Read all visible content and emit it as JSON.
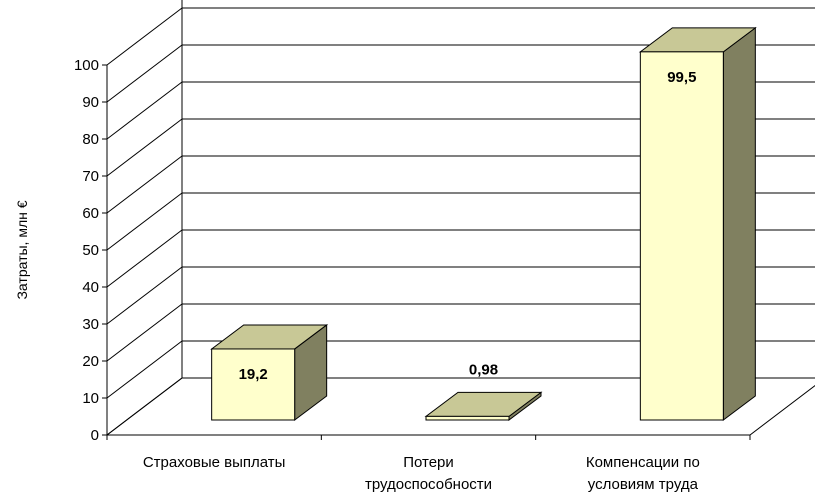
{
  "chart_data": {
    "type": "bar",
    "style": "3d-column",
    "categories": [
      [
        "Страховые выплаты"
      ],
      [
        "Потери",
        "трудоспособности"
      ],
      [
        "Компенсации по",
        "условиям труда"
      ]
    ],
    "values": [
      19.2,
      0.98,
      99.5
    ],
    "data_labels": [
      "19,2",
      "0,98",
      "99,5"
    ],
    "ylabel": "Затраты, млн €",
    "xlabel": "",
    "ylim": [
      0,
      100
    ],
    "yticks": [
      0,
      10,
      20,
      30,
      40,
      50,
      60,
      70,
      80,
      90,
      100
    ],
    "grid": true,
    "legend": "none",
    "colors": {
      "bar_front": "#ffffcc",
      "bar_top": "#c8c896",
      "bar_side": "#808060",
      "gridline": "#000000"
    }
  }
}
